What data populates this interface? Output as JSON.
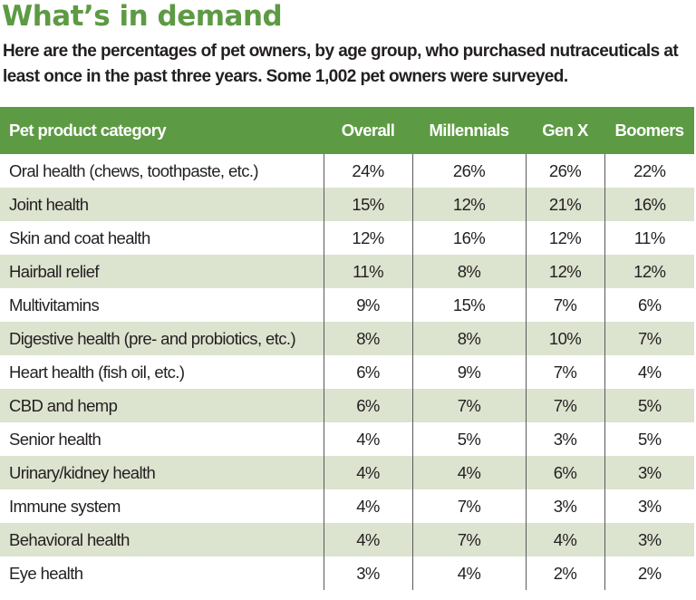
{
  "header": {
    "title": "What’s in demand",
    "subtitle": "Here are the percentages of pet owners, by age group, who purchased nutraceuticals at least once in the past three years. Some 1,002 pet owners were surveyed."
  },
  "colors": {
    "accent_green": "#5d9a44",
    "stripe": "#dce3cf",
    "text": "#231f20"
  },
  "table": {
    "columns": [
      "Pet product category",
      "Overall",
      "Millennials",
      "Gen X",
      "Boomers"
    ],
    "rows": [
      [
        "Oral health (chews, toothpaste, etc.)",
        "24%",
        "26%",
        "26%",
        "22%"
      ],
      [
        "Joint health",
        "15%",
        "12%",
        "21%",
        "16%"
      ],
      [
        "Skin and coat health",
        "12%",
        "16%",
        "12%",
        "11%"
      ],
      [
        "Hairball relief",
        "11%",
        "8%",
        "12%",
        "12%"
      ],
      [
        "Multivitamins",
        "9%",
        "15%",
        "7%",
        "6%"
      ],
      [
        "Digestive health (pre- and probiotics, etc.)",
        "8%",
        "8%",
        "10%",
        "7%"
      ],
      [
        "Heart health (fish oil, etc.)",
        "6%",
        "9%",
        "7%",
        "4%"
      ],
      [
        "CBD and hemp",
        "6%",
        "7%",
        "7%",
        "5%"
      ],
      [
        "Senior health",
        "4%",
        "5%",
        "3%",
        "5%"
      ],
      [
        "Urinary/kidney health",
        "4%",
        "4%",
        "6%",
        "3%"
      ],
      [
        "Immune system",
        "4%",
        "7%",
        "3%",
        "3%"
      ],
      [
        "Behavioral health",
        "4%",
        "7%",
        "4%",
        "3%"
      ],
      [
        "Eye health",
        "3%",
        "4%",
        "2%",
        "2%"
      ]
    ]
  }
}
